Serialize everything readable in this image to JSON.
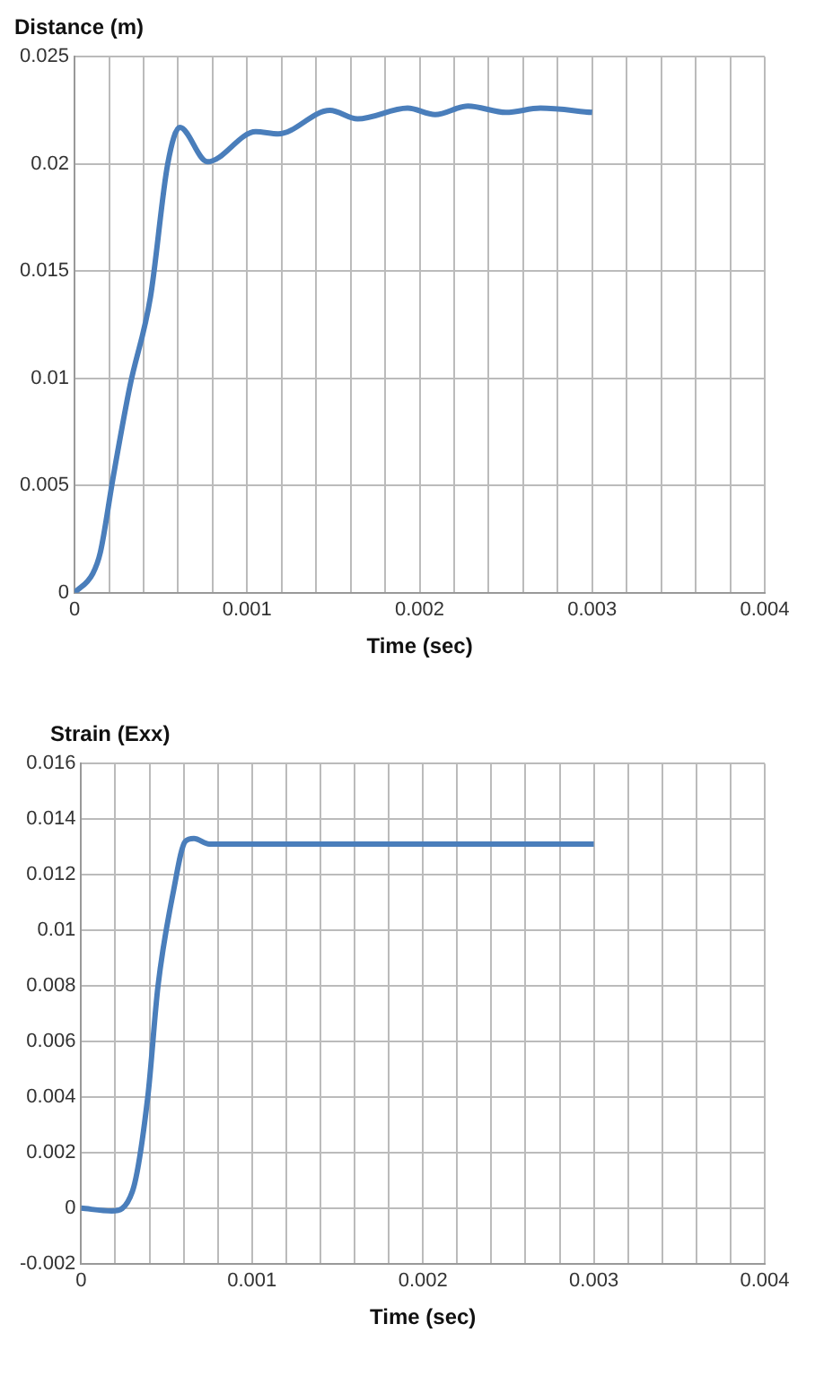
{
  "chart_data": [
    {
      "type": "line",
      "ylabel": "Distance (m)",
      "xlabel": "Time (sec)",
      "color": "#4a7ebb",
      "marker": "none",
      "grid": true,
      "x": [
        0,
        0.000106,
        0.00015,
        0.000224,
        0.00032,
        0.00044,
        0.00054,
        0.00061,
        0.00077,
        0.00105,
        0.00118,
        0.00148,
        0.00164,
        0.00193,
        0.00209,
        0.00228,
        0.0025,
        0.0027,
        0.003
      ],
      "values": [
        0,
        0.0009,
        0.0019,
        0.0054,
        0.0096,
        0.0138,
        0.02,
        0.0217,
        0.0201,
        0.0215,
        0.0214,
        0.0225,
        0.0221,
        0.0226,
        0.0223,
        0.0227,
        0.0224,
        0.0226,
        0.0224
      ],
      "xlim": [
        0,
        0.004
      ],
      "xticks": [
        0,
        {
          "value": 0.0002,
          "label": null
        },
        {
          "value": 0.0004,
          "label": null
        },
        {
          "value": 0.0006,
          "label": null
        },
        {
          "value": 0.0008,
          "label": null
        },
        0.001,
        {
          "value": 0.0012,
          "label": null
        },
        {
          "value": 0.0014,
          "label": null
        },
        {
          "value": 0.0016,
          "label": null
        },
        {
          "value": 0.0018,
          "label": null
        },
        0.002,
        {
          "value": 0.0022,
          "label": null
        },
        {
          "value": 0.0024,
          "label": null
        },
        {
          "value": 0.0026,
          "label": null
        },
        {
          "value": 0.0028,
          "label": null
        },
        0.003,
        {
          "value": 0.0032,
          "label": null
        },
        {
          "value": 0.0034,
          "label": null
        },
        {
          "value": 0.0036,
          "label": null
        },
        {
          "value": 0.0038,
          "label": null
        },
        0.004
      ],
      "ylim": [
        0,
        0.025
      ],
      "yticks": [
        0,
        0.005,
        0.01,
        0.015,
        0.02,
        0.025
      ]
    },
    {
      "type": "line",
      "ylabel": "Strain (Exx)",
      "xlabel": "Time (sec)",
      "color": "#4a7ebb",
      "marker": "none",
      "grid": true,
      "x": [
        0,
        0.00018,
        0.0003,
        0.00039,
        0.00045,
        0.00054,
        0.00061,
        0.00066,
        0.00075,
        0.003
      ],
      "values": [
        0,
        -0.0001,
        0.0006,
        0.004,
        0.008,
        0.0114,
        0.0132,
        0.0133,
        0.0131,
        0.0131
      ],
      "xlim": [
        0,
        0.004
      ],
      "xticks": [
        0,
        {
          "value": 0.0002,
          "label": null
        },
        {
          "value": 0.0004,
          "label": null
        },
        {
          "value": 0.0006,
          "label": null
        },
        {
          "value": 0.0008,
          "label": null
        },
        0.001,
        {
          "value": 0.0012,
          "label": null
        },
        {
          "value": 0.0014,
          "label": null
        },
        {
          "value": 0.0016,
          "label": null
        },
        {
          "value": 0.0018,
          "label": null
        },
        0.002,
        {
          "value": 0.0022,
          "label": null
        },
        {
          "value": 0.0024,
          "label": null
        },
        {
          "value": 0.0026,
          "label": null
        },
        {
          "value": 0.0028,
          "label": null
        },
        0.003,
        {
          "value": 0.0032,
          "label": null
        },
        {
          "value": 0.0034,
          "label": null
        },
        {
          "value": 0.0036,
          "label": null
        },
        {
          "value": 0.0038,
          "label": null
        },
        0.004
      ],
      "ylim": [
        -0.002,
        0.016
      ],
      "yticks": [
        -0.002,
        0,
        0.002,
        0.004,
        0.006,
        0.008,
        0.01,
        0.012,
        0.014,
        0.016
      ]
    }
  ]
}
